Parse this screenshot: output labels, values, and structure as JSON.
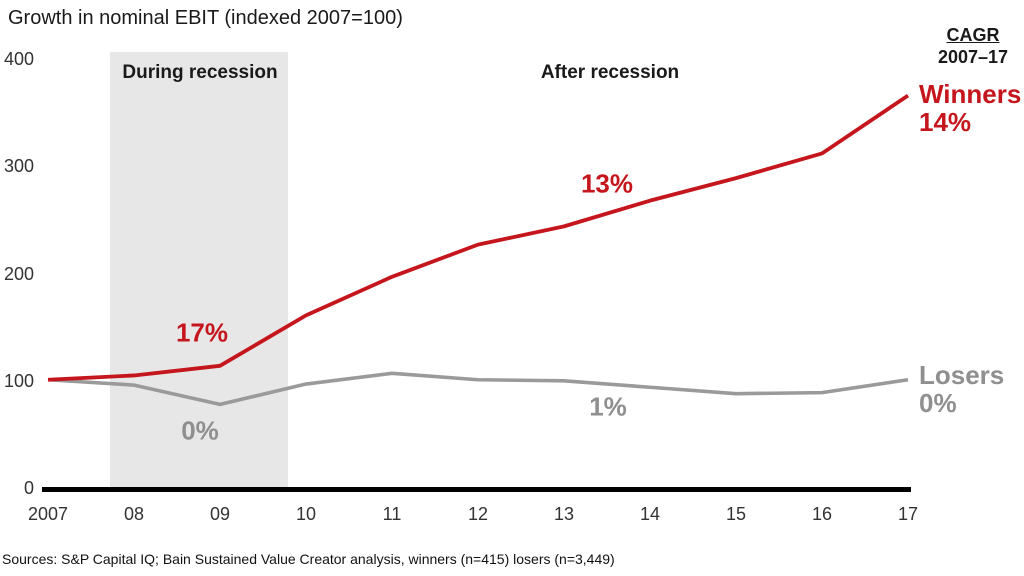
{
  "title": "Growth in nominal EBIT (indexed 2007=100)",
  "labels": {
    "during_recession": "During recession",
    "after_recession": "After recession",
    "cagr_line1": "CAGR",
    "cagr_line2": "2007–17",
    "winners_name": "Winners",
    "winners_cagr": "14%",
    "losers_name": "Losers",
    "losers_cagr": "0%",
    "ann_winners_recession": "17%",
    "ann_losers_recession": "0%",
    "ann_winners_after": "13%",
    "ann_losers_after": "1%"
  },
  "footer": {
    "sources": "Sources: S&P Capital IQ; Bain Sustained Value Creator analysis, winners (n=415) losers (n=3,449)"
  },
  "colors": {
    "winners_red": "#c4161c",
    "losers_gray": "#9a9a9a",
    "gray_text": "#8f8f8f",
    "recession_band": "#e7e7e7",
    "axis_black": "#000000"
  },
  "chart_data": {
    "type": "line",
    "title": "Growth in nominal EBIT (indexed 2007=100)",
    "categories": [
      "2007",
      "08",
      "09",
      "10",
      "11",
      "12",
      "13",
      "14",
      "15",
      "16",
      "17"
    ],
    "series": [
      {
        "name": "Winners",
        "cagr_2007_17": "14%",
        "color": "#c4161c",
        "values": [
          100,
          104,
          113,
          160,
          196,
          226,
          243,
          267,
          288,
          311,
          365
        ]
      },
      {
        "name": "Losers",
        "cagr_2007_17": "0%",
        "color": "#9a9a9a",
        "values": [
          100,
          95,
          77,
          96,
          106,
          100,
          99,
          93,
          87,
          88,
          100
        ]
      }
    ],
    "y_ticks": [
      0,
      100,
      200,
      300,
      400
    ],
    "ylim": [
      0,
      400
    ],
    "x_start_year": 2007,
    "recession_band": {
      "label": "During recession",
      "from": 2007.72,
      "to": 2009.79
    },
    "after_label": "After recession",
    "grid": false,
    "legend_position": "right-of-line-ends",
    "annotations": [
      {
        "text": "17%",
        "series": "Winners",
        "period": "during recession"
      },
      {
        "text": "0%",
        "series": "Losers",
        "period": "during recession"
      },
      {
        "text": "13%",
        "series": "Winners",
        "period": "after recession"
      },
      {
        "text": "1%",
        "series": "Losers",
        "period": "after recession"
      }
    ]
  }
}
